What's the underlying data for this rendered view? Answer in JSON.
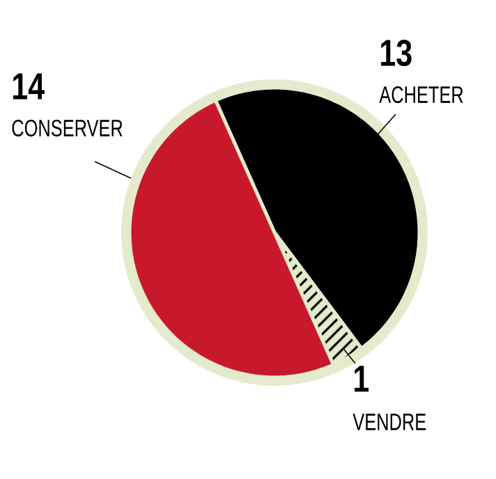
{
  "chart_data": {
    "type": "pie",
    "categories": [
      "ACHETER",
      "VENDRE",
      "CONSERVER"
    ],
    "values": [
      13,
      1,
      14
    ],
    "colors": [
      "#000000",
      "#e3ebcc",
      "#c8192c"
    ],
    "data_labels": true
  }
}
